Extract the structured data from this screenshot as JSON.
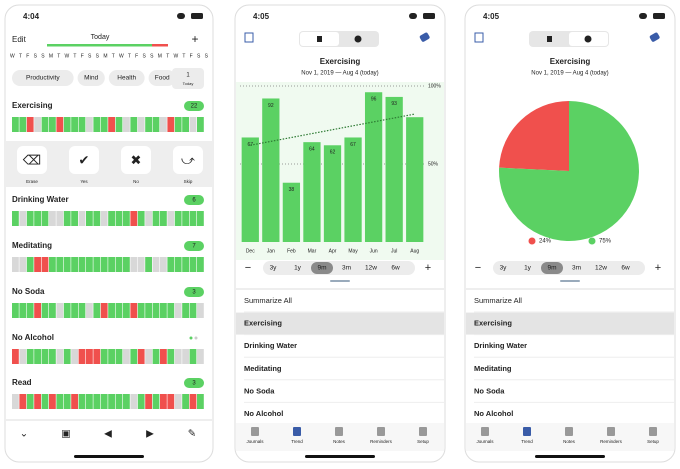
{
  "screens": [
    {
      "status_time": "4:04",
      "nav_left": "Edit",
      "nav_center": "Today",
      "weekdays": "W T F S S M T W T F S S M T W T F S S M T W T F S S",
      "categories": [
        "Productivity",
        "Mind",
        "Health",
        "Food"
      ],
      "today_count": "1",
      "today_label": "Today",
      "habits": [
        {
          "name": "Exercising",
          "count": 22
        },
        {
          "name": "Drinking Water",
          "count": 6
        },
        {
          "name": "Meditating",
          "count": 7
        },
        {
          "name": "No Soda",
          "count": 3
        },
        {
          "name": "No Alcohol",
          "count": null
        },
        {
          "name": "Read",
          "count": 3
        }
      ],
      "actions": [
        "Erase",
        "Yes",
        "No",
        "Skip"
      ]
    },
    {
      "status_time": "4:05",
      "ranges": [
        "3y",
        "1y",
        "9m",
        "3m",
        "12w",
        "6w"
      ],
      "selected_range": "9m",
      "list": [
        "Summarize All",
        "Exercising",
        "Drinking Water",
        "Meditating",
        "No Soda",
        "No Alcohol"
      ],
      "selected_item": "Exercising",
      "tabs": [
        "Journals",
        "Trend",
        "Notes",
        "Reminders",
        "Setup"
      ],
      "selected_tab": "Trend"
    },
    {
      "status_time": "4:05",
      "ranges": [
        "3y",
        "1y",
        "9m",
        "3m",
        "12w",
        "6w"
      ],
      "selected_range": "9m",
      "list": [
        "Summarize All",
        "Exercising",
        "Drinking Water",
        "Meditating",
        "No Soda",
        "No Alcohol"
      ],
      "selected_item": "Exercising",
      "tabs": [
        "Journals",
        "Trend",
        "Notes",
        "Reminders",
        "Setup"
      ],
      "selected_tab": "Trend"
    }
  ],
  "chart_data": [
    {
      "type": "bar",
      "title": "Exercising",
      "subtitle": "Nov 1, 2019 — Aug 4 (today)",
      "categories": [
        "Dec",
        "Jan",
        "Feb",
        "Mar",
        "Apr",
        "May",
        "Jun",
        "Jul",
        "Aug"
      ],
      "values": [
        67,
        92,
        38,
        64,
        62,
        67,
        96,
        93,
        80
      ],
      "value_labels": [
        "67",
        "92",
        "38",
        "64",
        "62",
        "67",
        "96",
        "93",
        null
      ],
      "color": "#5bd163",
      "ylim": [
        0,
        100
      ],
      "yticks": [
        {
          "value": 50,
          "label": "50%"
        },
        {
          "value": 100,
          "label": "100%"
        }
      ],
      "grid": true,
      "trend": [
        62,
        82
      ]
    },
    {
      "type": "pie",
      "title": "Exercising",
      "subtitle": "Nov 1, 2019 — Aug 4 (today)",
      "categories": [
        "No",
        "Yes"
      ],
      "values": [
        24,
        75
      ],
      "value_labels": [
        "24%",
        "75%"
      ],
      "colors": [
        "#f0504d",
        "#5bd163"
      ]
    }
  ]
}
